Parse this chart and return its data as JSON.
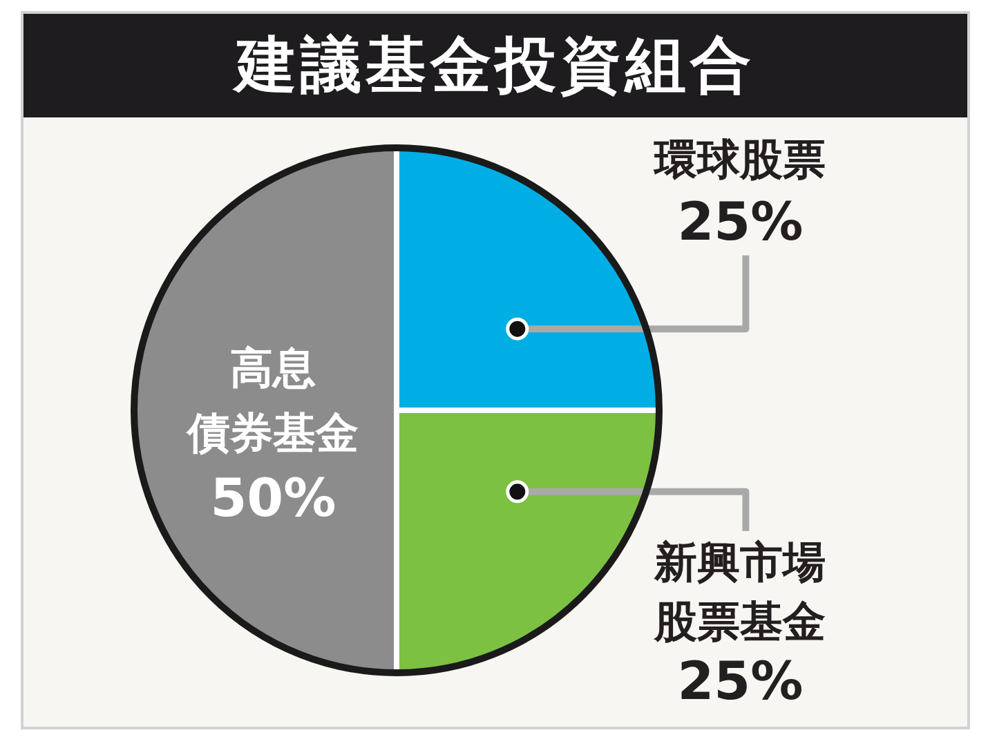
{
  "chart_data": {
    "type": "pie",
    "title": "建議基金投資組合",
    "categories": [
      "環球股票",
      "新興市場股票基金",
      "高息債券基金"
    ],
    "values": [
      25,
      25,
      50
    ],
    "colors": [
      "#00aee6",
      "#7cc142",
      "#8c8c8c"
    ],
    "value_labels": [
      "25%",
      "25%",
      "50%"
    ]
  }
}
